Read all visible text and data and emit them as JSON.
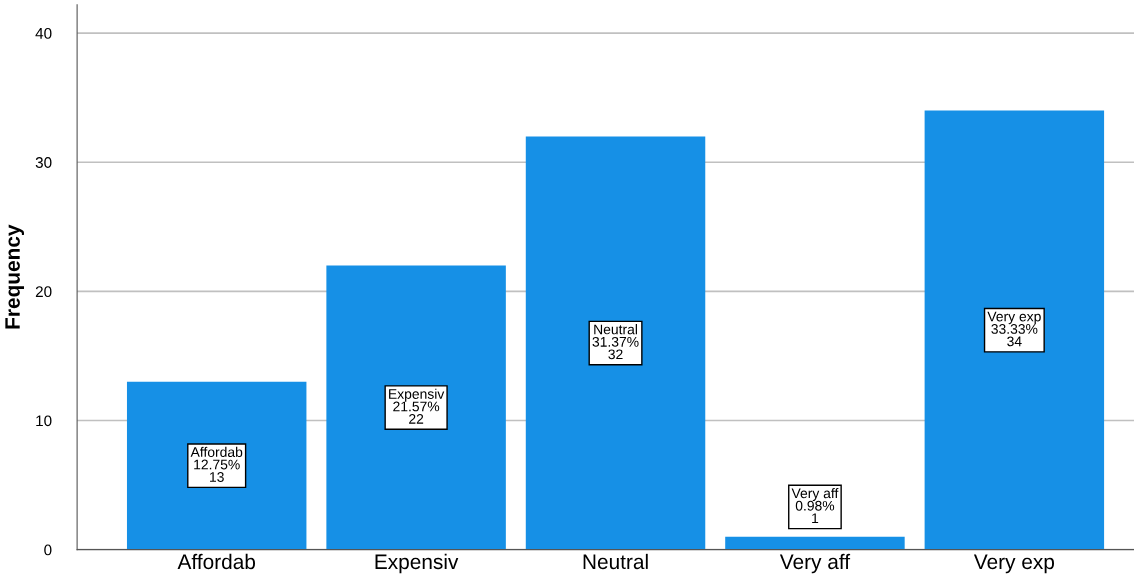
{
  "chart_data": {
    "type": "bar",
    "ylabel": "Frequency",
    "categories": [
      "Affordab",
      "Expensiv",
      "Neutral",
      "Very aff",
      "Very exp"
    ],
    "values": [
      13,
      22,
      32,
      1,
      34
    ],
    "value_labels": [
      "Affordab\n12.75%\n13",
      "Expensiv\n21.57%\n22",
      "Neutral\n31.37%\n32",
      "Very aff\n0.98%\n1",
      "Very exp\n33.33%\n34"
    ],
    "color": "#1690e6",
    "ylim": [
      0,
      42.2
    ],
    "yticks": [
      0,
      10,
      20,
      30,
      40
    ],
    "grid": "y"
  }
}
